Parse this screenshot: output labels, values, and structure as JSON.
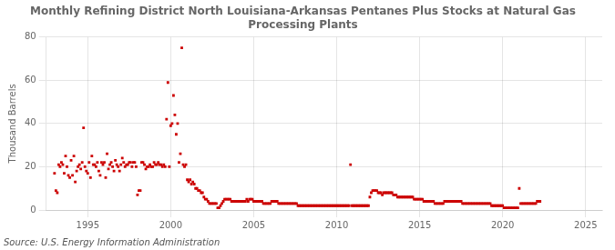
{
  "chart_data": {
    "type": "scatter",
    "title": "Monthly Refining District North Louisiana-Arkansas Pentanes Plus Stocks at Natural Gas\nProcessing Plants",
    "ylabel": "Thousand Barrels",
    "source": "Source: U.S. Energy Information Administration",
    "color": "#cc0000",
    "marker": "square",
    "grid": true,
    "xlim": [
      1992.5,
      2026
    ],
    "ylim": [
      0,
      80
    ],
    "xticks": [
      1995,
      2000,
      2005,
      2010,
      2015,
      2020,
      2025
    ],
    "yticks": [
      0,
      20,
      40,
      60,
      80
    ],
    "x": [
      1993.0,
      1993.083,
      1993.167,
      1993.25,
      1993.333,
      1993.417,
      1993.5,
      1993.583,
      1993.667,
      1993.75,
      1993.833,
      1993.917,
      1994.0,
      1994.083,
      1994.167,
      1994.25,
      1994.333,
      1994.417,
      1994.5,
      1994.583,
      1994.667,
      1994.75,
      1994.833,
      1994.917,
      1995.0,
      1995.083,
      1995.167,
      1995.25,
      1995.333,
      1995.417,
      1995.5,
      1995.583,
      1995.667,
      1995.75,
      1995.833,
      1995.917,
      1996.0,
      1996.083,
      1996.167,
      1996.25,
      1996.333,
      1996.417,
      1996.5,
      1996.583,
      1996.667,
      1996.75,
      1996.833,
      1996.917,
      1997.0,
      1997.083,
      1997.167,
      1997.25,
      1997.333,
      1997.417,
      1997.5,
      1997.583,
      1997.667,
      1997.75,
      1997.833,
      1997.917,
      1998.0,
      1998.083,
      1998.167,
      1998.25,
      1998.333,
      1998.417,
      1998.5,
      1998.583,
      1998.667,
      1998.75,
      1998.833,
      1998.917,
      1999.0,
      1999.083,
      1999.167,
      1999.25,
      1999.333,
      1999.417,
      1999.5,
      1999.583,
      1999.667,
      1999.75,
      1999.833,
      1999.917,
      2000.0,
      2000.083,
      2000.167,
      2000.25,
      2000.333,
      2000.417,
      2000.5,
      2000.583,
      2000.667,
      2000.75,
      2000.833,
      2000.917,
      2001.0,
      2001.083,
      2001.167,
      2001.25,
      2001.333,
      2001.417,
      2001.5,
      2001.583,
      2001.667,
      2001.75,
      2001.833,
      2001.917,
      2002.0,
      2002.083,
      2002.167,
      2002.25,
      2002.333,
      2002.417,
      2002.5,
      2002.583,
      2002.667,
      2002.75,
      2002.833,
      2002.917,
      2003.0,
      2003.083,
      2003.167,
      2003.25,
      2003.333,
      2003.417,
      2003.5,
      2003.583,
      2003.667,
      2003.75,
      2003.833,
      2003.917,
      2004.0,
      2004.083,
      2004.167,
      2004.25,
      2004.333,
      2004.417,
      2004.5,
      2004.583,
      2004.667,
      2004.75,
      2004.833,
      2004.917,
      2005.0,
      2005.083,
      2005.167,
      2005.25,
      2005.333,
      2005.417,
      2005.5,
      2005.583,
      2005.667,
      2005.75,
      2005.833,
      2005.917,
      2006.0,
      2006.083,
      2006.167,
      2006.25,
      2006.333,
      2006.417,
      2006.5,
      2006.583,
      2006.667,
      2006.75,
      2006.833,
      2006.917,
      2007.0,
      2007.083,
      2007.167,
      2007.25,
      2007.333,
      2007.417,
      2007.5,
      2007.583,
      2007.667,
      2007.75,
      2007.833,
      2007.917,
      2008.0,
      2008.083,
      2008.167,
      2008.25,
      2008.333,
      2008.417,
      2008.5,
      2008.583,
      2008.667,
      2008.75,
      2008.833,
      2008.917,
      2009.0,
      2009.083,
      2009.167,
      2009.25,
      2009.333,
      2009.417,
      2009.5,
      2009.583,
      2009.667,
      2009.75,
      2009.833,
      2009.917,
      2010.0,
      2010.083,
      2010.167,
      2010.25,
      2010.333,
      2010.417,
      2010.5,
      2010.583,
      2010.667,
      2010.75,
      2010.833,
      2010.917,
      2011.0,
      2011.083,
      2011.167,
      2011.25,
      2011.333,
      2011.417,
      2011.5,
      2011.583,
      2011.667,
      2011.75,
      2011.833,
      2011.917,
      2012.0,
      2012.083,
      2012.167,
      2012.25,
      2012.333,
      2012.417,
      2012.5,
      2012.583,
      2012.667,
      2012.75,
      2012.833,
      2012.917,
      2013.0,
      2013.083,
      2013.167,
      2013.25,
      2013.333,
      2013.417,
      2013.5,
      2013.583,
      2013.667,
      2013.75,
      2013.833,
      2013.917,
      2014.0,
      2014.083,
      2014.167,
      2014.25,
      2014.333,
      2014.417,
      2014.5,
      2014.583,
      2014.667,
      2014.75,
      2014.833,
      2014.917,
      2015.0,
      2015.083,
      2015.167,
      2015.25,
      2015.333,
      2015.417,
      2015.5,
      2015.583,
      2015.667,
      2015.75,
      2015.833,
      2015.917,
      2016.0,
      2016.083,
      2016.167,
      2016.25,
      2016.333,
      2016.417,
      2016.5,
      2016.583,
      2016.667,
      2016.75,
      2016.833,
      2016.917,
      2017.0,
      2017.083,
      2017.167,
      2017.25,
      2017.333,
      2017.417,
      2017.5,
      2017.583,
      2017.667,
      2017.75,
      2017.833,
      2017.917,
      2018.0,
      2018.083,
      2018.167,
      2018.25,
      2018.333,
      2018.417,
      2018.5,
      2018.583,
      2018.667,
      2018.75,
      2018.833,
      2018.917,
      2019.0,
      2019.083,
      2019.167,
      2019.25,
      2019.333,
      2019.417,
      2019.5,
      2019.583,
      2019.667,
      2019.75,
      2019.833,
      2019.917,
      2020.0,
      2020.083,
      2020.167,
      2020.25,
      2020.333,
      2020.417,
      2020.5,
      2020.583,
      2020.667,
      2020.75,
      2020.833,
      2020.917,
      2021.0,
      2021.083,
      2021.167,
      2021.25,
      2021.333,
      2021.417,
      2021.5,
      2021.583,
      2021.667,
      2021.75,
      2021.833,
      2021.917,
      2022.0,
      2022.083,
      2022.167,
      2022.25
    ],
    "values": [
      17,
      9,
      8,
      21,
      20,
      22,
      21,
      17,
      25,
      20,
      16,
      15,
      23,
      16,
      25,
      13,
      18,
      20,
      21,
      19,
      22,
      38,
      20,
      18,
      17,
      22,
      15,
      25,
      21,
      21,
      20,
      22,
      18,
      16,
      22,
      21,
      22,
      15,
      26,
      19,
      21,
      22,
      20,
      18,
      23,
      21,
      20,
      18,
      21,
      24,
      22,
      20,
      21,
      21,
      22,
      22,
      20,
      22,
      22,
      20,
      7,
      9,
      9,
      22,
      22,
      21,
      19,
      20,
      20,
      21,
      20,
      20,
      22,
      21,
      21,
      22,
      21,
      21,
      20,
      21,
      20,
      42,
      59,
      20,
      39,
      40,
      53,
      44,
      35,
      40,
      22,
      26,
      75,
      21,
      20,
      21,
      14,
      13,
      14,
      12,
      13,
      12,
      10,
      10,
      9,
      9,
      8,
      8,
      6,
      5,
      5,
      4,
      3,
      3,
      3,
      3,
      3,
      3,
      1,
      1,
      2,
      3,
      4,
      5,
      5,
      5,
      5,
      5,
      4,
      4,
      4,
      4,
      4,
      4,
      4,
      4,
      4,
      4,
      4,
      5,
      4,
      5,
      5,
      5,
      4,
      4,
      4,
      4,
      4,
      4,
      4,
      3,
      3,
      3,
      3,
      3,
      3,
      4,
      4,
      4,
      4,
      4,
      3,
      3,
      3,
      3,
      3,
      3,
      3,
      3,
      3,
      3,
      3,
      3,
      3,
      3,
      2,
      2,
      2,
      2,
      2,
      2,
      2,
      2,
      2,
      2,
      2,
      2,
      2,
      2,
      2,
      2,
      2,
      2,
      2,
      2,
      2,
      2,
      2,
      2,
      2,
      2,
      2,
      2,
      2,
      2,
      2,
      2,
      2,
      2,
      2,
      2,
      2,
      2,
      21,
      2,
      2,
      2,
      2,
      2,
      2,
      2,
      2,
      2,
      2,
      2,
      2,
      2,
      6,
      8,
      9,
      9,
      9,
      9,
      8,
      8,
      8,
      7,
      8,
      8,
      8,
      8,
      8,
      8,
      8,
      7,
      7,
      7,
      6,
      6,
      6,
      6,
      6,
      6,
      6,
      6,
      6,
      6,
      6,
      6,
      5,
      5,
      5,
      5,
      5,
      5,
      5,
      4,
      4,
      4,
      4,
      4,
      4,
      4,
      4,
      3,
      3,
      3,
      3,
      3,
      3,
      3,
      4,
      4,
      4,
      4,
      4,
      4,
      4,
      4,
      4,
      4,
      4,
      4,
      4,
      3,
      3,
      3,
      3,
      3,
      3,
      3,
      3,
      3,
      3,
      3,
      3,
      3,
      3,
      3,
      3,
      3,
      3,
      3,
      3,
      3,
      2,
      2,
      2,
      2,
      2,
      2,
      2,
      2,
      2,
      1,
      1,
      1,
      1,
      1,
      1,
      1,
      1,
      1,
      1,
      1,
      10,
      3,
      3,
      3,
      3,
      3,
      3,
      3,
      3,
      3,
      3,
      3,
      3,
      4,
      4,
      4
    ]
  }
}
